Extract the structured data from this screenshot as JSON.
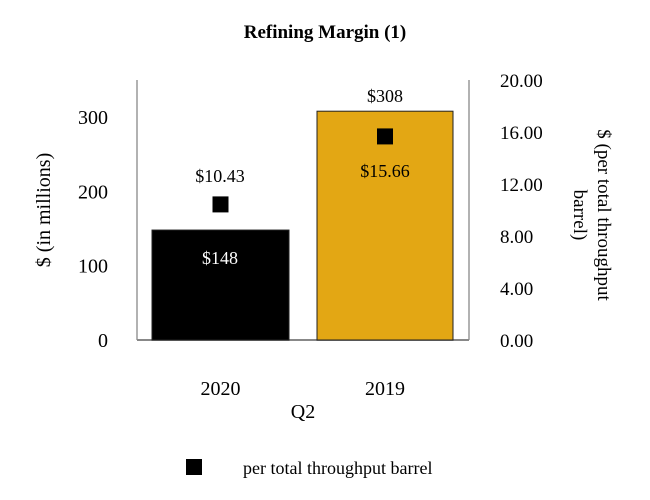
{
  "chart_data": {
    "type": "bar",
    "title": "Refining Margin (1)",
    "xlabel": "Q2",
    "ylabel": "$ (in millions)",
    "y2label_lines": [
      "$ (per total throughput",
      "barrel)"
    ],
    "categories": [
      "2020",
      "2019"
    ],
    "series": [
      {
        "name": "Refining Margin ($ in millions)",
        "axis": "left",
        "type": "bar",
        "values": [
          148,
          308
        ],
        "labels": [
          "$148",
          "$308"
        ],
        "colors": [
          "#000000",
          "#E3A714"
        ]
      },
      {
        "name": "per total throughput barrel",
        "axis": "right",
        "type": "marker",
        "values": [
          10.43,
          15.66
        ],
        "labels": [
          "$10.43",
          "$15.66"
        ],
        "color": "#000000"
      }
    ],
    "ylim": [
      0,
      350
    ],
    "yticks": [
      "0",
      "100",
      "200",
      "300"
    ],
    "y2lim": [
      0,
      20
    ],
    "y2ticks": [
      "0.00",
      "4.00",
      "8.00",
      "12.00",
      "16.00",
      "20.00"
    ],
    "grid": false,
    "legend": {
      "placement": "bottom",
      "entries": [
        "per total throughput barrel"
      ]
    }
  }
}
